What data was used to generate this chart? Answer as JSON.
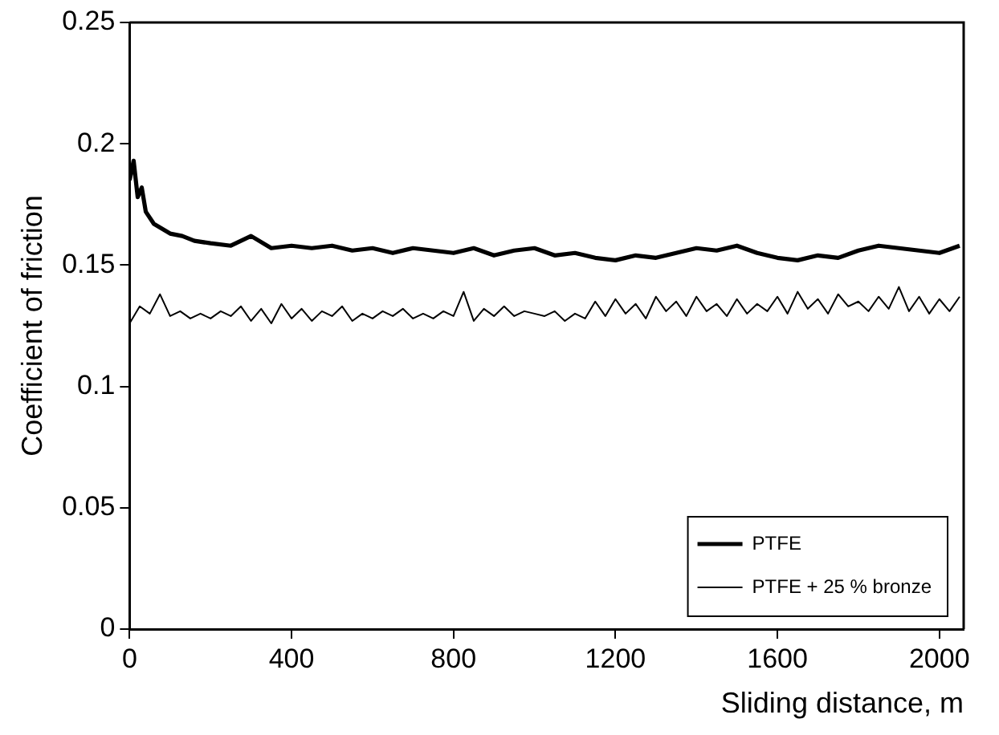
{
  "chart_data": {
    "type": "line",
    "xlabel": "Sliding distance, m",
    "ylabel": "Coefficient of friction",
    "xlim": [
      0,
      2060
    ],
    "xticks": [
      0,
      400,
      800,
      1200,
      1600,
      2000
    ],
    "ylim": [
      0,
      0.25
    ],
    "yticks": [
      0,
      0.05,
      0.1,
      0.15,
      0.2,
      0.25
    ],
    "grid": false,
    "legend": "bottom right",
    "marker": "none",
    "line_style": "solid",
    "series": [
      {
        "name": "PTFE",
        "color": "#000000",
        "x": [
          0,
          10,
          20,
          30,
          40,
          60,
          80,
          100,
          130,
          160,
          200,
          250,
          300,
          350,
          400,
          450,
          500,
          550,
          600,
          650,
          700,
          750,
          800,
          850,
          900,
          950,
          1000,
          1050,
          1100,
          1150,
          1200,
          1250,
          1300,
          1350,
          1400,
          1450,
          1500,
          1550,
          1600,
          1650,
          1700,
          1750,
          1800,
          1850,
          1900,
          1950,
          2000,
          2050
        ],
        "values": [
          0.185,
          0.193,
          0.178,
          0.182,
          0.172,
          0.167,
          0.165,
          0.163,
          0.162,
          0.16,
          0.159,
          0.158,
          0.162,
          0.157,
          0.158,
          0.157,
          0.158,
          0.156,
          0.157,
          0.155,
          0.157,
          0.156,
          0.155,
          0.157,
          0.154,
          0.156,
          0.157,
          0.154,
          0.155,
          0.153,
          0.152,
          0.154,
          0.153,
          0.155,
          0.157,
          0.156,
          0.158,
          0.155,
          0.153,
          0.152,
          0.154,
          0.153,
          0.156,
          0.158,
          0.157,
          0.156,
          0.155,
          0.158
        ]
      },
      {
        "name": "PTFE + 25 % bronze",
        "color": "#000000",
        "x": [
          0,
          25,
          50,
          75,
          100,
          125,
          150,
          175,
          200,
          225,
          250,
          275,
          300,
          325,
          350,
          375,
          400,
          425,
          450,
          475,
          500,
          525,
          550,
          575,
          600,
          625,
          650,
          675,
          700,
          725,
          750,
          775,
          800,
          825,
          850,
          875,
          900,
          925,
          950,
          975,
          1000,
          1025,
          1050,
          1075,
          1100,
          1125,
          1150,
          1175,
          1200,
          1225,
          1250,
          1275,
          1300,
          1325,
          1350,
          1375,
          1400,
          1425,
          1450,
          1475,
          1500,
          1525,
          1550,
          1575,
          1600,
          1625,
          1650,
          1675,
          1700,
          1725,
          1750,
          1775,
          1800,
          1825,
          1850,
          1875,
          1900,
          1925,
          1950,
          1975,
          2000,
          2025,
          2050
        ],
        "values": [
          0.126,
          0.133,
          0.13,
          0.138,
          0.129,
          0.131,
          0.128,
          0.13,
          0.128,
          0.131,
          0.129,
          0.133,
          0.127,
          0.132,
          0.126,
          0.134,
          0.128,
          0.132,
          0.127,
          0.131,
          0.129,
          0.133,
          0.127,
          0.13,
          0.128,
          0.131,
          0.129,
          0.132,
          0.128,
          0.13,
          0.128,
          0.131,
          0.129,
          0.139,
          0.127,
          0.132,
          0.129,
          0.133,
          0.129,
          0.131,
          0.13,
          0.129,
          0.131,
          0.127,
          0.13,
          0.128,
          0.135,
          0.129,
          0.136,
          0.13,
          0.134,
          0.128,
          0.137,
          0.131,
          0.135,
          0.129,
          0.137,
          0.131,
          0.134,
          0.129,
          0.136,
          0.13,
          0.134,
          0.131,
          0.137,
          0.13,
          0.139,
          0.132,
          0.136,
          0.13,
          0.138,
          0.133,
          0.135,
          0.131,
          0.137,
          0.132,
          0.141,
          0.131,
          0.137,
          0.13,
          0.136,
          0.131,
          0.137
        ]
      }
    ]
  }
}
